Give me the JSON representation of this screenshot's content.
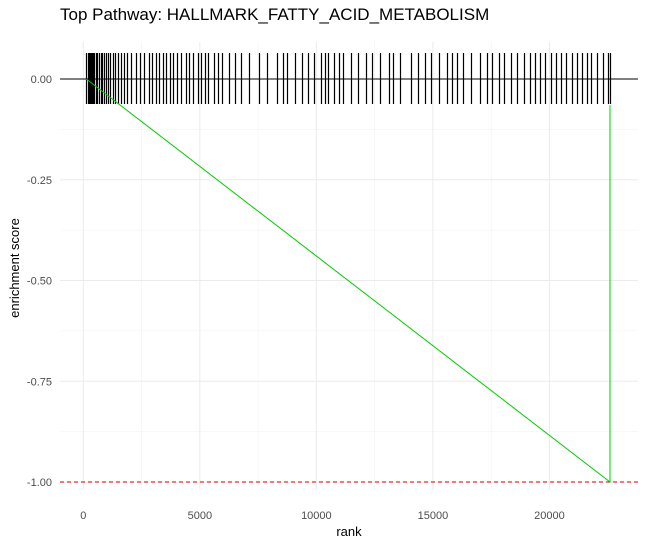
{
  "chart_data": {
    "type": "line",
    "title": "Top Pathway: HALLMARK_FATTY_ACID_METABOLISM",
    "xlabel": "rank",
    "ylabel": "enrichment score",
    "xlim": [
      -1000,
      23800
    ],
    "ylim": [
      -1.0,
      0.07
    ],
    "x_ticks": [
      0,
      5000,
      10000,
      15000,
      20000
    ],
    "x_tick_labels": [
      "0",
      "5000",
      "10000",
      "15000",
      "20000"
    ],
    "y_ticks": [
      0.0,
      -0.25,
      -0.5,
      -0.75,
      -1.0
    ],
    "y_tick_labels": [
      "0.00",
      "-0.25",
      "-0.50",
      "-0.75",
      "-1.00"
    ],
    "grid": true,
    "series": [
      {
        "values_x": [
          130,
          22600,
          22600
        ],
        "values_y": [
          -0.0,
          -1.0,
          -0.065
        ],
        "color": "#00cc00"
      }
    ],
    "reference_lines": [
      {
        "axis": "y",
        "value": 0.0,
        "style": "solid",
        "color": "#000000"
      },
      {
        "axis": "y",
        "value": -1.0,
        "style": "dashed",
        "color": "#cc0000"
      }
    ],
    "hit_ranks": [
      130,
      180,
      230,
      280,
      330,
      380,
      430,
      480,
      540,
      600,
      670,
      740,
      820,
      900,
      980,
      1070,
      1160,
      1260,
      1370,
      1480,
      1600,
      1730,
      1880,
      2050,
      2250,
      2450,
      2600,
      2800,
      2950,
      3100,
      3250,
      3420,
      3550,
      3700,
      3850,
      4000,
      4200,
      4420,
      4550,
      4700,
      4900,
      5050,
      5200,
      5350,
      5600,
      5780,
      5950,
      6250,
      6500,
      6750,
      7100,
      7550,
      7900,
      8300,
      8550,
      8750,
      9100,
      9400,
      9650,
      9900,
      10200,
      10350,
      10500,
      10750,
      10950,
      11150,
      11500,
      11800,
      12150,
      12400,
      12750,
      13100,
      13300,
      13600,
      14050,
      14350,
      14650,
      14900,
      15250,
      15600,
      15800,
      16050,
      16300,
      16650,
      17000,
      17300,
      17550,
      17850,
      18050,
      18350,
      18600,
      18900,
      19150,
      19400,
      19600,
      19800,
      20050,
      20300,
      20500,
      20700,
      20950,
      21200,
      21400,
      21600,
      21800,
      22050,
      22300,
      22500,
      22600
    ]
  }
}
